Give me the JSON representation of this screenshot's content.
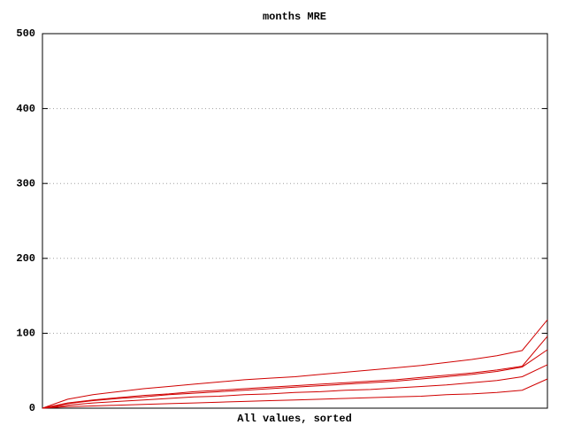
{
  "chart_data": {
    "type": "line",
    "title": "months MRE",
    "x_label": "All values, sorted",
    "ylim": [
      0,
      500
    ],
    "yticks": [
      0,
      100,
      200,
      300,
      400,
      500
    ],
    "grid": true,
    "series": [
      {
        "color": "#d00000",
        "values": [
          0,
          12,
          18,
          22,
          26,
          29,
          32,
          35,
          38,
          40,
          42,
          45,
          48,
          51,
          54,
          57,
          61,
          65,
          70,
          77,
          118
        ]
      },
      {
        "color": "#d00000",
        "values": [
          0,
          7,
          11,
          14,
          17,
          19,
          22,
          24,
          26,
          28,
          30,
          32,
          34,
          36,
          38,
          41,
          44,
          47,
          51,
          56,
          96
        ]
      },
      {
        "color": "#d00000",
        "values": [
          0,
          6,
          10,
          13,
          15,
          18,
          20,
          22,
          24,
          26,
          28,
          30,
          32,
          34,
          36,
          39,
          42,
          45,
          49,
          55,
          78
        ]
      },
      {
        "color": "#d00000",
        "values": [
          0,
          4,
          7,
          9,
          11,
          13,
          15,
          16,
          18,
          19,
          21,
          22,
          24,
          25,
          27,
          29,
          31,
          34,
          37,
          42,
          58
        ]
      },
      {
        "color": "#d00000",
        "values": [
          0,
          2,
          3,
          4,
          5,
          6,
          7,
          8,
          9,
          10,
          11,
          12,
          13,
          14,
          15,
          16,
          18,
          19,
          21,
          24,
          39
        ]
      }
    ]
  }
}
